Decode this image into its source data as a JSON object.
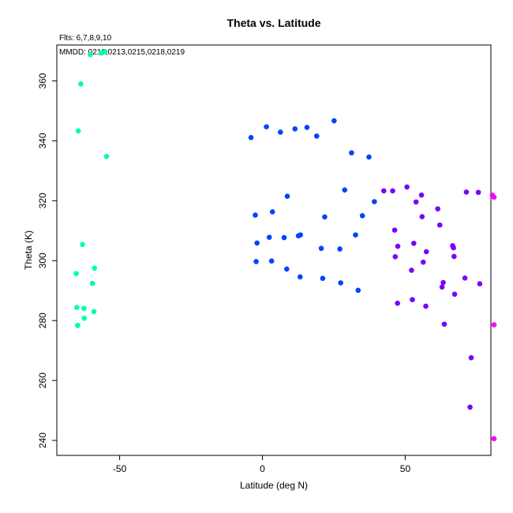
{
  "chart_data": {
    "type": "scatter",
    "title": "Theta vs. Latitude",
    "subtitle": "Flts: 6,7,8,9,10",
    "annotation": "MMDD: 0210,0213,0215,0218,0219",
    "xlabel": "Latitude (deg N)",
    "ylabel": "Theta (K)",
    "xlim": [
      -72,
      80
    ],
    "ylim": [
      235,
      372
    ],
    "xticks": [
      -50,
      0,
      50
    ],
    "yticks": [
      240,
      260,
      280,
      300,
      320,
      340,
      360
    ],
    "grid": false,
    "series": [
      {
        "color": "#00FFAA",
        "x": [
          -64.5,
          -63.6,
          -60.3,
          -56.5,
          -55.1,
          -65.2,
          -54.6,
          -63.0,
          -58.8,
          -65.0,
          -59.5,
          -64.7,
          -62.5,
          -59.0,
          -62.4,
          -64.7
        ],
        "y": [
          343.3,
          359.0,
          368.8,
          369.3,
          369.8,
          295.7,
          334.8,
          305.4,
          297.5,
          284.4,
          292.4,
          278.4,
          284.1,
          283.0,
          280.8,
          278.4
        ]
      },
      {
        "color": "#0044FF",
        "x": [
          -4.0,
          1.4,
          6.3,
          11.4,
          15.6,
          19.0,
          25.1,
          31.2,
          37.3,
          -2.5,
          3.5,
          8.7,
          28.8,
          21.8,
          39.2,
          35.0,
          -1.9,
          2.4,
          7.6,
          12.6,
          13.3,
          20.6,
          27.1,
          32.6,
          -2.2,
          3.2,
          8.5,
          13.2,
          21.1,
          27.4,
          33.5
        ],
        "y": [
          341.1,
          344.7,
          342.9,
          344.0,
          344.5,
          341.6,
          346.7,
          336.0,
          334.6,
          315.2,
          316.3,
          321.5,
          323.6,
          314.6,
          319.7,
          315.0,
          305.9,
          307.8,
          307.7,
          308.3,
          308.6,
          304.1,
          303.9,
          308.6,
          299.7,
          299.9,
          297.2,
          294.6,
          294.1,
          292.6,
          290.1
        ]
      },
      {
        "color": "#7A00FF",
        "x": [
          42.5,
          45.6,
          50.6,
          55.7,
          53.8,
          61.4,
          71.4,
          75.6,
          55.9,
          62.1,
          46.3,
          47.4,
          53.0,
          46.5,
          52.2,
          56.3,
          57.4,
          66.6,
          66.9,
          67.1,
          63.3,
          62.9,
          70.9,
          76.1,
          67.3,
          47.3,
          52.5,
          57.2,
          63.7,
          73.1,
          72.7
        ],
        "y": [
          323.3,
          323.3,
          324.6,
          321.9,
          319.6,
          317.3,
          322.9,
          322.8,
          314.7,
          311.9,
          310.2,
          304.8,
          305.8,
          301.3,
          296.8,
          299.5,
          303.0,
          305.0,
          304.3,
          301.4,
          292.7,
          291.2,
          294.2,
          292.3,
          288.8,
          285.8,
          287.0,
          284.8,
          278.8,
          267.6,
          251.1
        ]
      },
      {
        "color": "#FF00FF",
        "x": [
          80.5,
          81.1,
          81.1,
          81.1
        ],
        "y": [
          321.9,
          321.2,
          278.6,
          240.6
        ]
      }
    ]
  }
}
